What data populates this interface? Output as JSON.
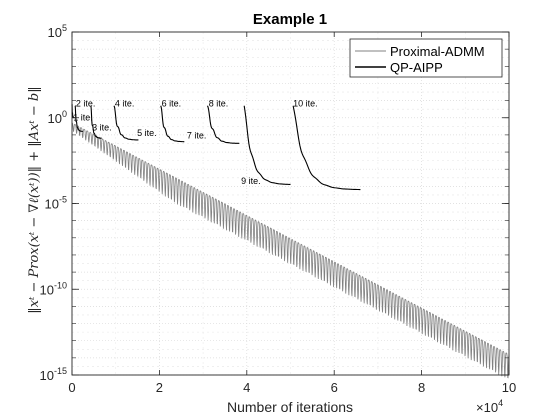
{
  "chart_data": {
    "type": "line",
    "title": "Example 1",
    "xlabel": "Number of iterations",
    "ylabel": "‖xᵗ − Prox(xᵗ − ∇ℓ(xᵗ))‖ + ‖Axᵗ − b‖",
    "x_multiplier_label": "×10",
    "x_multiplier_exp": "4",
    "xlim": [
      0,
      100000
    ],
    "ylim_exp": [
      -15,
      5
    ],
    "yscale": "log",
    "grid": true,
    "legend_position": "top-right",
    "x_ticks": [
      {
        "value": 0,
        "label": "0"
      },
      {
        "value": 20000,
        "label": "2"
      },
      {
        "value": 40000,
        "label": "4"
      },
      {
        "value": 60000,
        "label": "6"
      },
      {
        "value": 80000,
        "label": "8"
      },
      {
        "value": 100000,
        "label": "10"
      }
    ],
    "y_ticks": [
      {
        "exp": -15,
        "base": "10",
        "sup": "-15"
      },
      {
        "exp": -10,
        "base": "10",
        "sup": "-10"
      },
      {
        "exp": -5,
        "base": "10",
        "sup": "-5"
      },
      {
        "exp": 0,
        "base": "10",
        "sup": "0"
      },
      {
        "exp": 5,
        "base": "10",
        "sup": "5"
      }
    ],
    "series": [
      {
        "name": "Proximal-ADMM",
        "color": "#808080",
        "kind": "oscillating-decay",
        "start_exp": -0.3,
        "end_exp": -13.8,
        "oscillation_period": 700,
        "oscillation_depth_exp": 1.5
      },
      {
        "name": "QP-AIPP",
        "color": "#000000",
        "kind": "restart-segments",
        "segments": [
          {
            "x_start": 0,
            "x_end": 600,
            "start_exp": 0.7,
            "end_exp": 0.0
          },
          {
            "x_start": 700,
            "x_end": 2500,
            "start_exp": 0.7,
            "end_exp": -0.8
          },
          {
            "x_start": 4300,
            "x_end": 6800,
            "start_exp": 0.7,
            "end_exp": -1.2
          },
          {
            "x_start": 9600,
            "x_end": 15200,
            "start_exp": 0.7,
            "end_exp": -1.3
          },
          {
            "x_start": 20300,
            "x_end": 25700,
            "start_exp": 0.7,
            "end_exp": -1.4
          },
          {
            "x_start": 31000,
            "x_end": 38300,
            "start_exp": 0.7,
            "end_exp": -1.5
          },
          {
            "x_start": 39400,
            "x_end": 50000,
            "start_exp": 0.7,
            "end_exp": -3.9
          },
          {
            "x_start": 50600,
            "x_end": 66000,
            "start_exp": 0.7,
            "end_exp": -4.2
          }
        ]
      }
    ],
    "annotations": [
      {
        "text": "2 ite.",
        "x": 900,
        "y_exp": 0.65
      },
      {
        "text": "1 ite.",
        "x": 300,
        "y_exp": -0.15
      },
      {
        "text": "3 ite.",
        "x": 4600,
        "y_exp": -0.75
      },
      {
        "text": "4 ite.",
        "x": 9800,
        "y_exp": 0.65
      },
      {
        "text": "5 ite.",
        "x": 14900,
        "y_exp": -1.05
      },
      {
        "text": "6 ite.",
        "x": 20500,
        "y_exp": 0.65
      },
      {
        "text": "7 ite.",
        "x": 26300,
        "y_exp": -1.2
      },
      {
        "text": "8 ite.",
        "x": 31300,
        "y_exp": 0.65
      },
      {
        "text": "9 ite.",
        "x": 38700,
        "y_exp": -3.85
      },
      {
        "text": "10 ite.",
        "x": 50600,
        "y_exp": 0.65
      }
    ]
  }
}
